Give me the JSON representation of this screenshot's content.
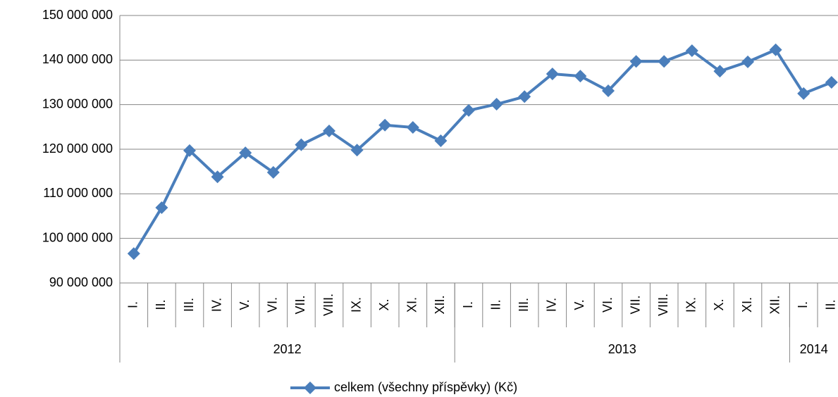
{
  "chart_data": {
    "type": "line",
    "categories": [
      "I.",
      "II.",
      "III.",
      "IV.",
      "V.",
      "VI.",
      "VII.",
      "VIII.",
      "IX.",
      "X.",
      "XI.",
      "XII.",
      "I.",
      "II.",
      "III.",
      "IV.",
      "V.",
      "VI.",
      "VII.",
      "VIII.",
      "IX.",
      "X.",
      "XI.",
      "XII.",
      "I.",
      "II."
    ],
    "category_groups": [
      {
        "label": "2012",
        "span": 12
      },
      {
        "label": "2013",
        "span": 12
      },
      {
        "label": "2014",
        "span": 2
      }
    ],
    "series": [
      {
        "name": "celkem (všechny příspěvky) (Kč)",
        "color": "#4a7ebb",
        "values": [
          96600000,
          106900000,
          119700000,
          113800000,
          119200000,
          114800000,
          121000000,
          124100000,
          119800000,
          125400000,
          124900000,
          121900000,
          128700000,
          130100000,
          131800000,
          136900000,
          136400000,
          133100000,
          139700000,
          139700000,
          142100000,
          137500000,
          139600000,
          142300000,
          132500000,
          135000000
        ]
      }
    ],
    "ylim": [
      90000000,
      150000000
    ],
    "yticks": [
      {
        "value": 90000000,
        "label": "90 000 000"
      },
      {
        "value": 100000000,
        "label": "100 000 000"
      },
      {
        "value": 110000000,
        "label": "110 000 000"
      },
      {
        "value": 120000000,
        "label": "120 000 000"
      },
      {
        "value": 130000000,
        "label": "130 000 000"
      },
      {
        "value": 140000000,
        "label": "140 000 000"
      },
      {
        "value": 150000000,
        "label": "150 000 000"
      }
    ],
    "grid": true,
    "legend": "bottom"
  }
}
